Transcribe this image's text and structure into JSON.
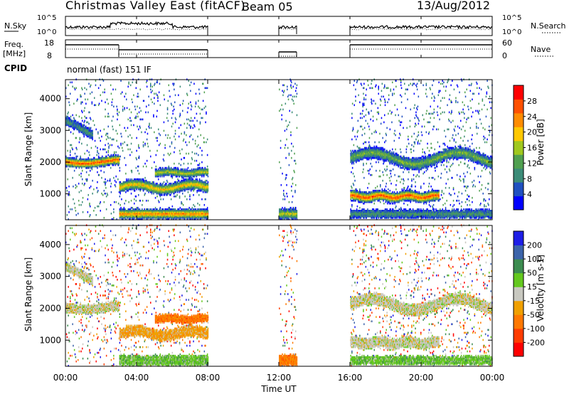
{
  "header": {
    "title": "Christmas Valley East (fitACF)",
    "beam": "Beam 05",
    "date": "13/Aug/2012"
  },
  "cpid": {
    "label": "CPID",
    "mode": "normal (fast) 151 IF"
  },
  "top_panels": {
    "nsky": {
      "label": "N.Sky",
      "ticks": [
        "10^5",
        "10^0"
      ],
      "right_label": "N.Search",
      "right_ticks": [
        "10^5",
        "10^0"
      ]
    },
    "freq": {
      "label_1": "Freq.",
      "label_2": "[MHz]",
      "ticks": [
        "18",
        "8"
      ],
      "right_label": "Nave",
      "right_ticks": [
        "60",
        "0"
      ]
    }
  },
  "colors": {
    "power_scale": [
      "#0000ff",
      "#2050c0",
      "#3c8c78",
      "#50a050",
      "#a0c81e",
      "#ffc800",
      "#ff8c00",
      "#ff5000",
      "#ff0000"
    ],
    "velocity_scale": [
      "#1e1ee6",
      "#3c64aa",
      "#3c8c50",
      "#64c81e",
      "#c8c8c0",
      "#f0a000",
      "#ff7800",
      "#ff3c00",
      "#ff0000"
    ]
  },
  "chart_data": [
    {
      "type": "heatmap",
      "name": "power",
      "ylabel": "Slant Range [km]",
      "yticks": [
        1000,
        2000,
        3000,
        4000
      ],
      "xticks": [
        "00:00",
        "04:00",
        "08:00",
        "12:00",
        "16:00",
        "20:00",
        "00:00"
      ],
      "colorbar": {
        "label": "Power [dB]",
        "ticks": [
          28,
          24,
          20,
          16,
          12,
          8,
          4
        ]
      },
      "data_windows_ut": [
        [
          0,
          8
        ],
        [
          12,
          13
        ],
        [
          16,
          24
        ]
      ]
    },
    {
      "type": "heatmap",
      "name": "velocity",
      "ylabel": "Slant Range [km]",
      "yticks": [
        1000,
        2000,
        3000,
        4000
      ],
      "xticks": [
        "00:00",
        "04:00",
        "08:00",
        "12:00",
        "16:00",
        "20:00",
        "00:00"
      ],
      "xlabel": "Time UT",
      "colorbar": {
        "label": "Velocity [m s-1]",
        "ticks": [
          200,
          100,
          50,
          15,
          -15,
          -50,
          -100,
          -200
        ]
      }
    }
  ]
}
